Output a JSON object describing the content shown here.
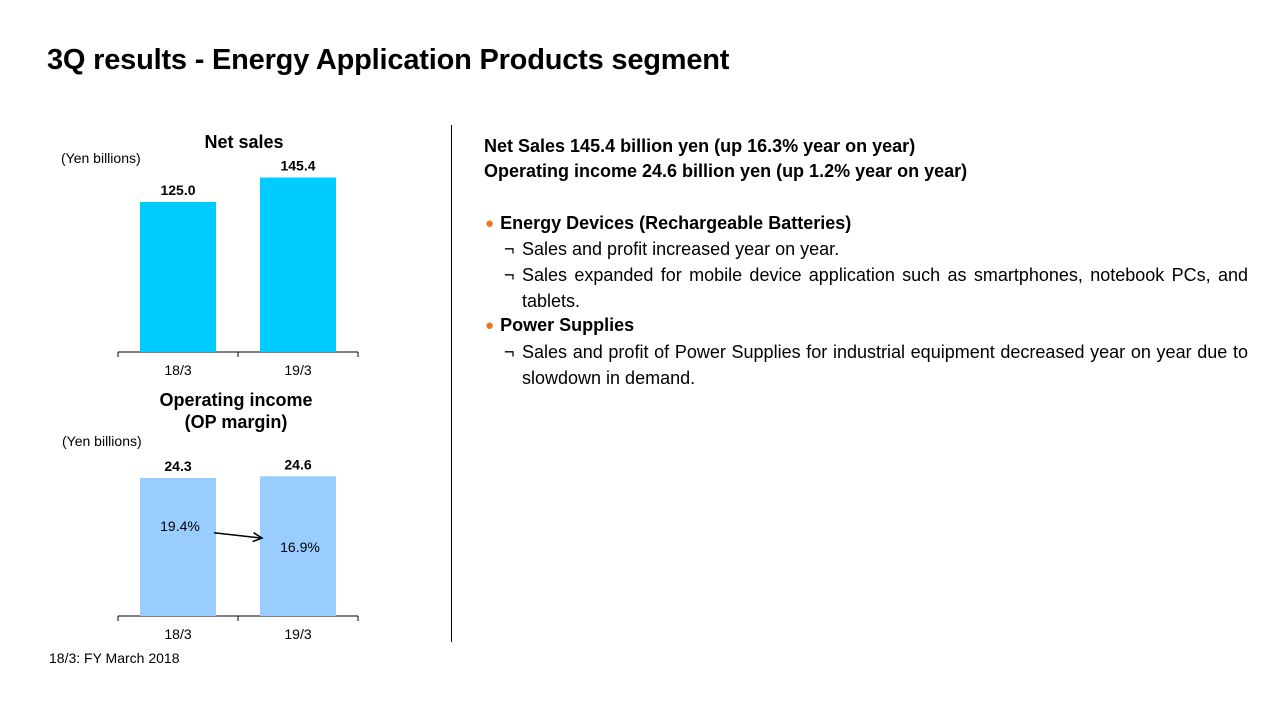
{
  "title": "3Q results - Energy Application Products segment",
  "chart_data": [
    {
      "type": "bar",
      "title": "Net sales",
      "unit_label": "(Yen billions)",
      "categories": [
        "18/3",
        "19/3"
      ],
      "values": [
        125.0,
        145.4
      ],
      "value_labels": [
        "125.0",
        "145.4"
      ],
      "ylim": [
        0,
        150
      ],
      "color": "#00CCFF"
    },
    {
      "type": "bar",
      "title": "Operating income\n(OP margin)",
      "unit_label": "(Yen billions)",
      "categories": [
        "18/3",
        "19/3"
      ],
      "values": [
        24.3,
        24.6
      ],
      "value_labels": [
        "24.3",
        "24.6"
      ],
      "margins": [
        "19.4%",
        "16.9%"
      ],
      "ylim": [
        0,
        25
      ],
      "color": "#99CCFF"
    }
  ],
  "footnote": "18/3: FY March 2018",
  "summary": {
    "net_sales": "Net Sales 145.4 billion yen (up 16.3% year on year)",
    "operating_income": "Operating income 24.6 billion yen (up 1.2% year on year)"
  },
  "bullet_glyph": "●",
  "sub_bullet_glyph": "¬",
  "bullet_color": "#E87722",
  "sections": [
    {
      "heading": "Energy Devices (Rechargeable Batteries)",
      "items": [
        "Sales and profit increased year on year.",
        "Sales expanded for mobile device application such as smartphones, notebook PCs, and tablets."
      ]
    },
    {
      "heading": "Power Supplies",
      "items": [
        "Sales and profit of Power Supplies for industrial equipment decreased year on year due to slowdown in demand."
      ]
    }
  ]
}
